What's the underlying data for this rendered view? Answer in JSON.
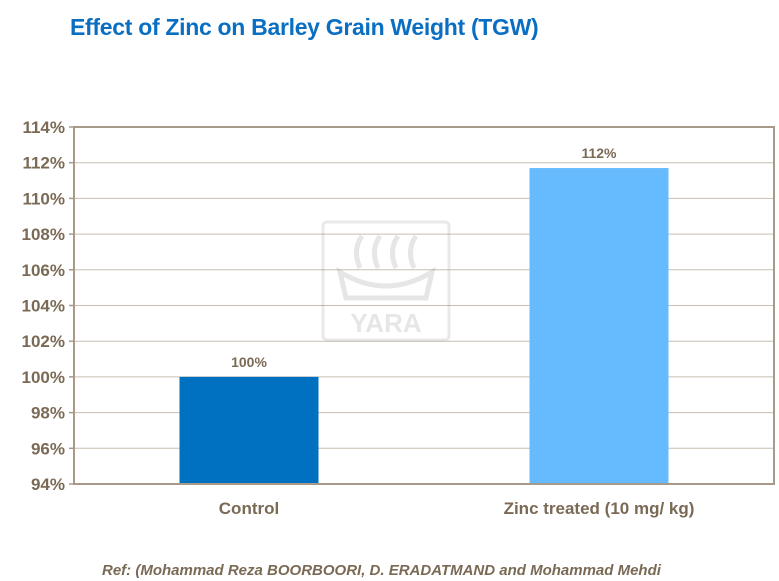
{
  "chart_data": {
    "type": "bar",
    "title": "Effect of Zinc on Barley Grain Weight (TGW)",
    "categories": [
      "Control",
      "Zinc treated (10 mg/ kg)"
    ],
    "values": [
      100,
      111.7
    ],
    "data_labels": [
      "100%",
      "112%"
    ],
    "colors": [
      "#0070c0",
      "#66bbff"
    ],
    "ylim": [
      94,
      114
    ],
    "yticks": [
      "94%",
      "96%",
      "98%",
      "100%",
      "102%",
      "104%",
      "106%",
      "108%",
      "110%",
      "112%",
      "114%"
    ],
    "grid": true,
    "legend": "none",
    "xlabel": "",
    "ylabel": ""
  },
  "watermark": "YARA",
  "reference": "Ref: (Mohammad Reza BOORBOORI, D. ERADATMAND and Mohammad Mehdi"
}
